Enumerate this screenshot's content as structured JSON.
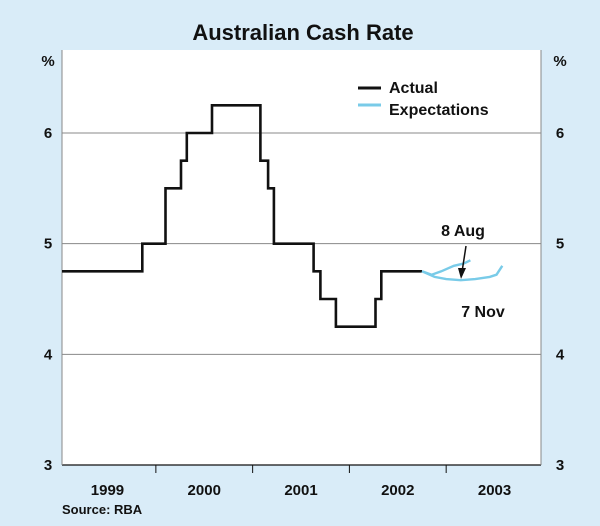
{
  "chart_data": {
    "type": "line",
    "title": "Australian Cash Rate",
    "ylabel_left": "%",
    "ylabel_right": "%",
    "ylim": [
      3,
      6.75
    ],
    "yticks": [
      3,
      4,
      5,
      6
    ],
    "xlim": [
      1998.53,
      2003.48
    ],
    "xticks": [
      {
        "label": "1999",
        "value": 1999
      },
      {
        "label": "2000",
        "value": 2000
      },
      {
        "label": "2001",
        "value": 2001
      },
      {
        "label": "2002",
        "value": 2002
      },
      {
        "label": "2003",
        "value": 2003
      }
    ],
    "series": [
      {
        "name": "Actual",
        "color": "#111111",
        "step": true,
        "points": [
          [
            1998.53,
            4.75
          ],
          [
            1999.36,
            4.75
          ],
          [
            1999.36,
            5.0
          ],
          [
            1999.6,
            5.0
          ],
          [
            1999.6,
            5.5
          ],
          [
            1999.76,
            5.5
          ],
          [
            1999.76,
            5.75
          ],
          [
            1999.82,
            5.75
          ],
          [
            1999.82,
            6.0
          ],
          [
            2000.08,
            6.0
          ],
          [
            2000.08,
            6.25
          ],
          [
            2000.58,
            6.25
          ],
          [
            2000.58,
            5.75
          ],
          [
            2000.66,
            5.75
          ],
          [
            2000.66,
            5.5
          ],
          [
            2000.72,
            5.5
          ],
          [
            2000.72,
            5.0
          ],
          [
            2001.13,
            5.0
          ],
          [
            2001.13,
            4.75
          ],
          [
            2001.2,
            4.75
          ],
          [
            2001.2,
            4.5
          ],
          [
            2001.36,
            4.5
          ],
          [
            2001.36,
            4.25
          ],
          [
            2001.77,
            4.25
          ],
          [
            2001.77,
            4.5
          ],
          [
            2001.83,
            4.5
          ],
          [
            2001.83,
            4.75
          ],
          [
            2002.25,
            4.75
          ]
        ]
      },
      {
        "name": "Expectations",
        "color": "#79cbe8",
        "step": false,
        "label": "8 Aug",
        "points": [
          [
            2002.25,
            4.75
          ],
          [
            2002.35,
            4.72
          ],
          [
            2002.45,
            4.75
          ],
          [
            2002.58,
            4.8
          ],
          [
            2002.68,
            4.82
          ],
          [
            2002.75,
            4.85
          ]
        ]
      },
      {
        "name": "Expectations",
        "color": "#79cbe8",
        "step": false,
        "label": "7 Nov",
        "points": [
          [
            2002.25,
            4.75
          ],
          [
            2002.38,
            4.7
          ],
          [
            2002.5,
            4.68
          ],
          [
            2002.65,
            4.67
          ],
          [
            2002.8,
            4.68
          ],
          [
            2002.95,
            4.7
          ],
          [
            2003.02,
            4.72
          ],
          [
            2003.08,
            4.8
          ]
        ]
      }
    ],
    "legend": [
      {
        "label": "Actual",
        "color": "#111111"
      },
      {
        "label": "Expectations",
        "color": "#79cbe8"
      }
    ],
    "annotations": [
      {
        "text": "8 Aug",
        "arrow_to": [
          2002.52,
          4.8
        ]
      },
      {
        "text": "7 Nov"
      }
    ],
    "source": "Source: RBA",
    "grid": true,
    "plot_background": "#ffffff",
    "page_background": "#d9ecf8",
    "grid_color": "#888888"
  }
}
